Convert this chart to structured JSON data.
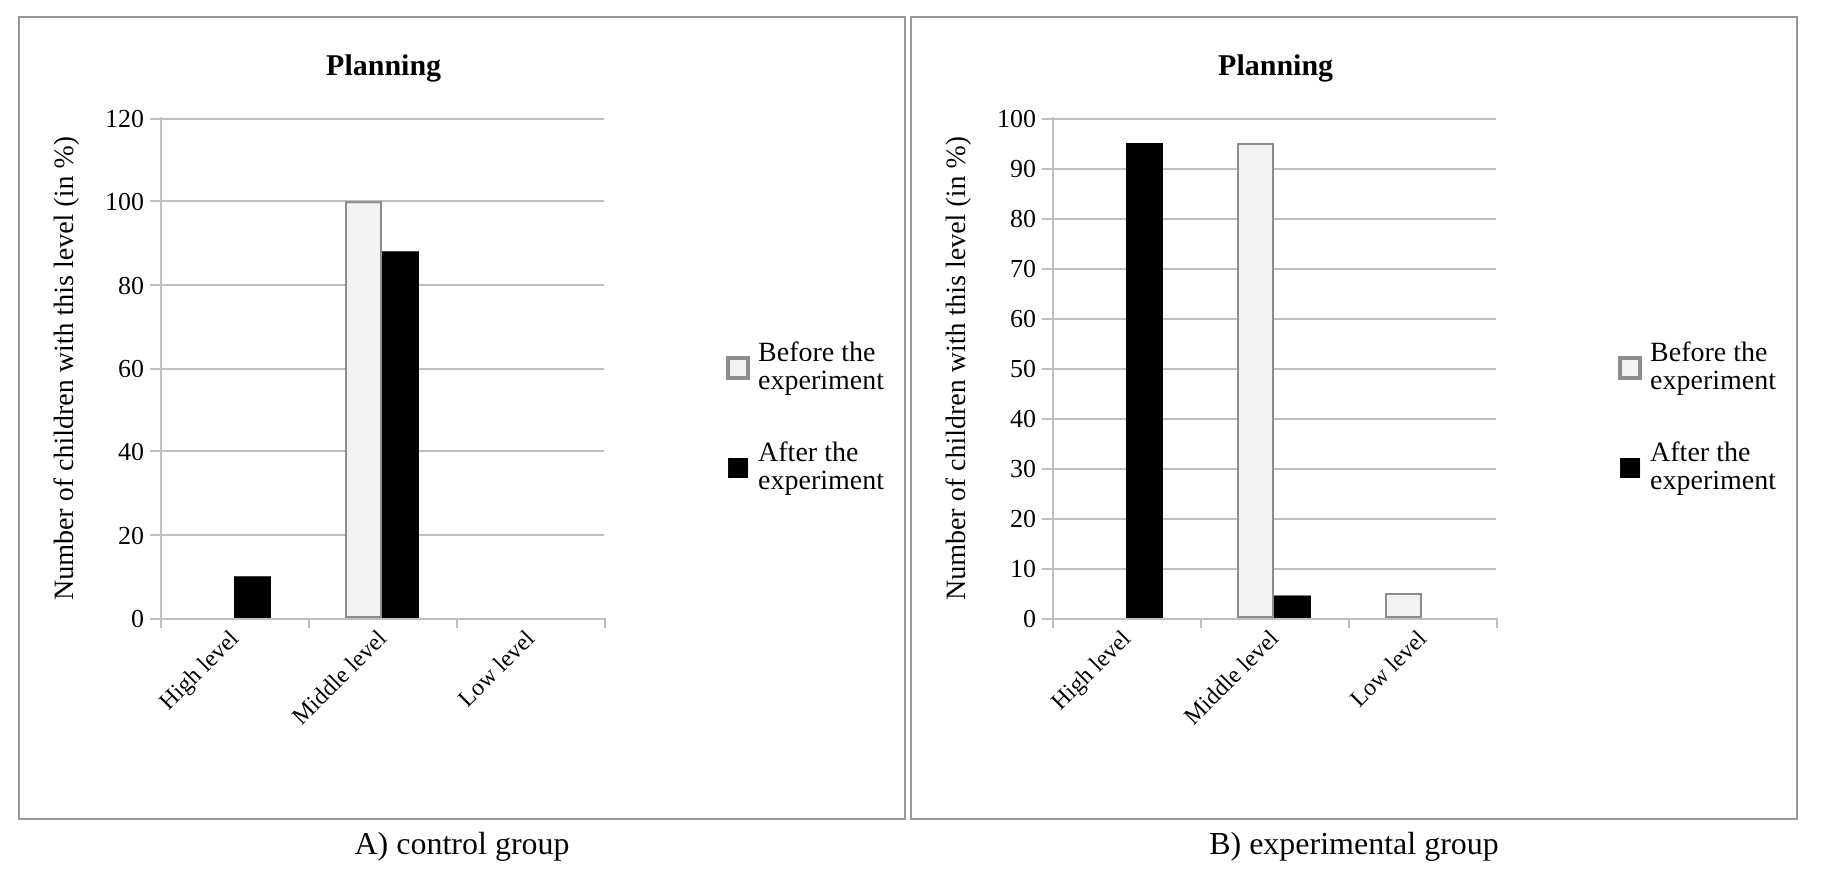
{
  "chart_data": [
    {
      "type": "bar",
      "title": "Planning",
      "ylabel": "Number of children with this level (in %)",
      "categories": [
        "High level",
        "Middle level",
        "Low level"
      ],
      "series": [
        {
          "name": "Before the experiment",
          "color": "#f2f2f2",
          "values": [
            0,
            100,
            0
          ]
        },
        {
          "name": "After the experiment",
          "color": "#000000",
          "values": [
            10,
            88,
            0
          ]
        }
      ],
      "ylim": [
        0,
        120
      ],
      "yticks": [
        0,
        20,
        40,
        60,
        80,
        100,
        120
      ],
      "grid": "y",
      "legend": "right",
      "annotations": [
        "A) control group"
      ]
    },
    {
      "type": "bar",
      "title": "Planning",
      "ylabel": "Number of children with this level (in %)",
      "categories": [
        "High level",
        "Middle level",
        "Low level"
      ],
      "series": [
        {
          "name": "Before the experiment",
          "color": "#f2f2f2",
          "values": [
            0,
            95,
            5
          ]
        },
        {
          "name": "After the experiment",
          "color": "#000000",
          "values": [
            95,
            4.5,
            0
          ]
        }
      ],
      "ylim": [
        0,
        100
      ],
      "yticks": [
        0,
        10,
        20,
        30,
        40,
        50,
        60,
        70,
        80,
        90,
        100
      ],
      "grid": "y",
      "legend": "right",
      "annotations": [
        "B) experimental group"
      ]
    }
  ]
}
